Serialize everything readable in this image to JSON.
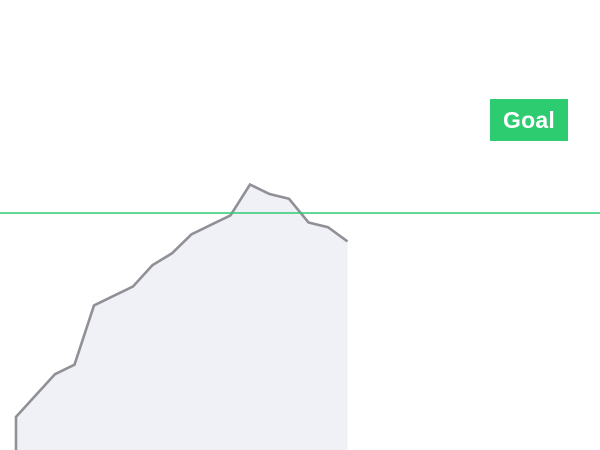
{
  "chart_data": {
    "type": "area",
    "title": "",
    "xlabel": "",
    "ylabel": "",
    "grid": false,
    "x": [
      0,
      1,
      2,
      3,
      4,
      5,
      6,
      7,
      8,
      9,
      10,
      11,
      12,
      13,
      14,
      15,
      16,
      17,
      18
    ],
    "series": [
      {
        "values": [
          0.14,
          0.23,
          0.32,
          0.36,
          0.61,
          0.65,
          0.69,
          0.78,
          0.83,
          0.91,
          0.95,
          0.99,
          1.12,
          1.08,
          1.06,
          0.96,
          0.94,
          0.88,
          null
        ]
      }
    ],
    "ylim": [
      0,
      1.3
    ],
    "goal": {
      "label": "Goal",
      "value": 1.0
    },
    "colors": {
      "line": "#909096",
      "fill": "#f0f1f6",
      "goal_line": "#2ecc71",
      "goal_badge": "#2ecc71",
      "goal_text": "#ffffff"
    }
  }
}
